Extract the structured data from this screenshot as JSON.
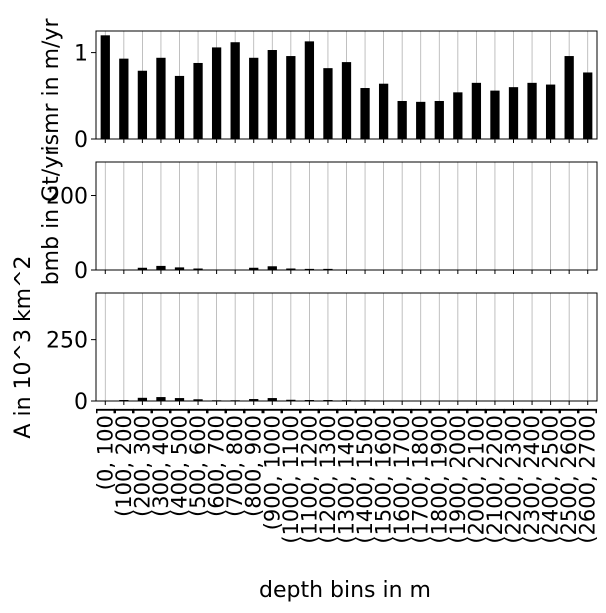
{
  "chart_data": [
    {
      "type": "bar",
      "panel": "top",
      "ylabel": "ismr in m/yr",
      "ylim": [
        0,
        1.25
      ],
      "yticks": [
        "0",
        "1"
      ],
      "ytick_values": [
        0,
        1
      ],
      "grid": "vertical",
      "color": "#000000",
      "values": [
        1.2,
        0.93,
        0.79,
        0.94,
        0.73,
        0.88,
        1.06,
        1.12,
        0.94,
        1.03,
        0.96,
        1.13,
        0.82,
        0.89,
        0.59,
        0.64,
        0.44,
        0.43,
        0.44,
        0.54,
        0.65,
        0.56,
        0.6,
        0.65,
        0.63,
        0.96,
        0.77
      ]
    },
    {
      "type": "bar",
      "panel": "middle",
      "ylabel": "bmb in Gt/yr",
      "ylim": [
        0,
        290
      ],
      "yticks": [
        "0",
        "200"
      ],
      "ytick_values": [
        0,
        200
      ],
      "grid": "vertical",
      "color": "#000000",
      "values": [
        0.5,
        0.5,
        6,
        11,
        7,
        4,
        1,
        1,
        6,
        10,
        4,
        3,
        3,
        1,
        0.5,
        0.5,
        0,
        0,
        0,
        0,
        0,
        0,
        0,
        0,
        0,
        0,
        0
      ]
    },
    {
      "type": "bar",
      "panel": "bottom",
      "ylabel": "A in 10^3 km^2",
      "ylim": [
        0,
        440
      ],
      "yticks": [
        "0",
        "250"
      ],
      "ytick_values": [
        0,
        250
      ],
      "grid": "vertical",
      "color": "#000000",
      "values": [
        1,
        4,
        13,
        16,
        12,
        7,
        3,
        3,
        8,
        12,
        5,
        4,
        4,
        3,
        3,
        1,
        1,
        1,
        0.5,
        0.5,
        0.5,
        0.5,
        0.5,
        0.5,
        0.5,
        0.5,
        0.5
      ]
    }
  ],
  "categories": [
    "(0, 100]",
    "(100, 200]",
    "(200, 300]",
    "(300, 400]",
    "(400, 500]",
    "(500, 600]",
    "(600, 700]",
    "(700, 800]",
    "(800, 900]",
    "(900, 1000]",
    "(1000, 1100]",
    "(1100, 1200]",
    "(1200, 1300]",
    "(1300, 1400]",
    "(1400, 1500]",
    "(1500, 1600]",
    "(1600, 1700]",
    "(1700, 1800]",
    "(1800, 1900]",
    "(1900, 2000]",
    "(2000, 2100]",
    "(2100, 2200]",
    "(2200, 2300]",
    "(2300, 2400]",
    "(2400, 2500]",
    "(2500, 2600]",
    "(2600, 2700]"
  ],
  "xlabel": "depth bins in m"
}
